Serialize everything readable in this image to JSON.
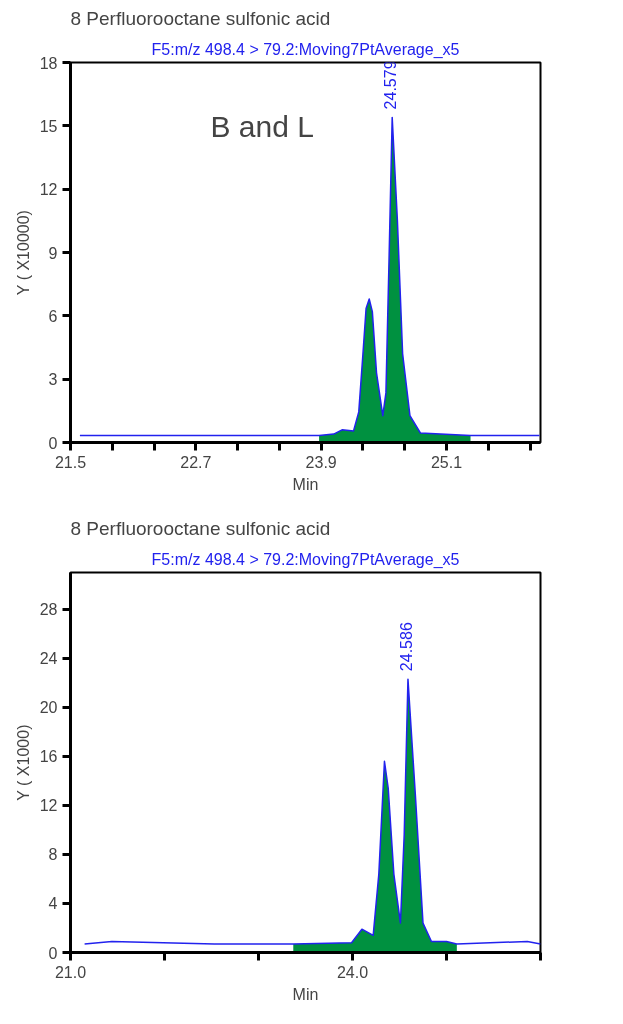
{
  "chart_data": [
    {
      "type": "line",
      "title": "8 Perfluorooctane sulfonic acid",
      "subtitle": "F5:m/z 498.4 > 79.2:Moving7PtAverage_x5",
      "xlabel": "Min",
      "ylabel": "Y ( X10000)",
      "xlim": [
        21.5,
        26.0
      ],
      "ylim": [
        0,
        18
      ],
      "xticks": [
        21.5,
        {
          "value": 21.9,
          "label": null
        },
        {
          "value": 22.3,
          "label": null
        },
        22.7,
        {
          "value": 23.1,
          "label": null
        },
        {
          "value": 23.5,
          "label": null
        },
        23.9,
        {
          "value": 24.3,
          "label": null
        },
        {
          "value": 24.7,
          "label": null
        },
        25.1,
        {
          "value": 25.5,
          "label": null
        },
        {
          "value": 25.9,
          "label": null
        }
      ],
      "yticks": [
        0,
        3,
        6,
        9,
        12,
        15,
        18
      ],
      "series": [
        {
          "type": "area",
          "color": "#009140",
          "x": [
            23.88,
            24.02,
            24.1,
            24.21,
            24.26,
            24.3,
            24.33,
            24.36,
            24.39,
            24.43,
            24.49,
            24.52,
            24.55,
            24.58,
            24.63,
            24.68,
            24.75,
            24.85,
            25.33
          ],
          "values": [
            0.33,
            0.4,
            0.6,
            0.55,
            1.45,
            4.2,
            6.35,
            6.8,
            6.2,
            3.3,
            1.27,
            2.35,
            8.7,
            15.4,
            10.5,
            4.2,
            1.27,
            0.45,
            0.33
          ]
        },
        {
          "color": "#2222ee",
          "x": [
            21.59,
            23.88,
            24.02,
            24.1,
            24.21,
            24.26,
            24.3,
            24.33,
            24.36,
            24.39,
            24.43,
            24.49,
            24.52,
            24.55,
            24.58,
            24.63,
            24.68,
            24.75,
            24.85,
            25.33,
            25.99
          ],
          "values": [
            0.33,
            0.33,
            0.4,
            0.6,
            0.55,
            1.45,
            4.2,
            6.35,
            6.8,
            6.2,
            3.3,
            1.27,
            2.35,
            8.7,
            15.4,
            10.5,
            4.2,
            1.27,
            0.45,
            0.33,
            0.33
          ]
        }
      ],
      "annotations": [
        {
          "text": "24.579",
          "x": 24.58,
          "y": 15.4
        },
        "B and L"
      ]
    },
    {
      "type": "line",
      "title": "8 Perfluorooctane sulfonic acid",
      "subtitle": "F5:m/z 498.4 > 79.2:Moving7PtAverage_x5",
      "xlabel": "Min",
      "ylabel": "Y ( X1000)",
      "xlim": [
        21.0,
        26.0
      ],
      "ylim": [
        0,
        31
      ],
      "xticks": [
        {
          "value": 21,
          "label": "21.0"
        },
        {
          "value": 22,
          "label": null
        },
        {
          "value": 23,
          "label": null
        },
        {
          "value": 24,
          "label": "24.0"
        },
        {
          "value": 25,
          "label": null
        },
        {
          "value": 26,
          "label": null
        }
      ],
      "yticks": [
        0,
        4,
        8,
        12,
        16,
        20,
        24,
        28
      ],
      "series": [
        {
          "type": "area",
          "color": "#009140",
          "x": [
            23.37,
            23.99,
            24.1,
            24.22,
            24.28,
            24.34,
            24.38,
            24.44,
            24.51,
            24.55,
            24.59,
            24.67,
            24.75,
            24.84,
            25.0,
            25.11
          ],
          "values": [
            0.7,
            0.8,
            1.9,
            1.4,
            6.4,
            15.6,
            13.4,
            6.4,
            2.4,
            9.6,
            22.3,
            12.7,
            2.4,
            0.9,
            0.9,
            0.7
          ]
        },
        {
          "color": "#2222ee",
          "x": [
            21.15,
            21.44,
            22.53,
            23.37,
            23.99,
            24.1,
            24.22,
            24.28,
            24.34,
            24.38,
            24.44,
            24.51,
            24.55,
            24.59,
            24.67,
            24.75,
            24.84,
            25.0,
            25.11,
            25.86,
            26.0
          ],
          "values": [
            0.7,
            0.9,
            0.7,
            0.7,
            0.8,
            1.9,
            1.4,
            6.4,
            15.6,
            13.4,
            6.4,
            2.4,
            9.6,
            22.3,
            12.7,
            2.4,
            0.9,
            0.9,
            0.7,
            0.9,
            0.7
          ]
        }
      ],
      "annotations": [
        {
          "text": "24.586",
          "x": 24.59,
          "y": 22.3
        }
      ]
    }
  ]
}
